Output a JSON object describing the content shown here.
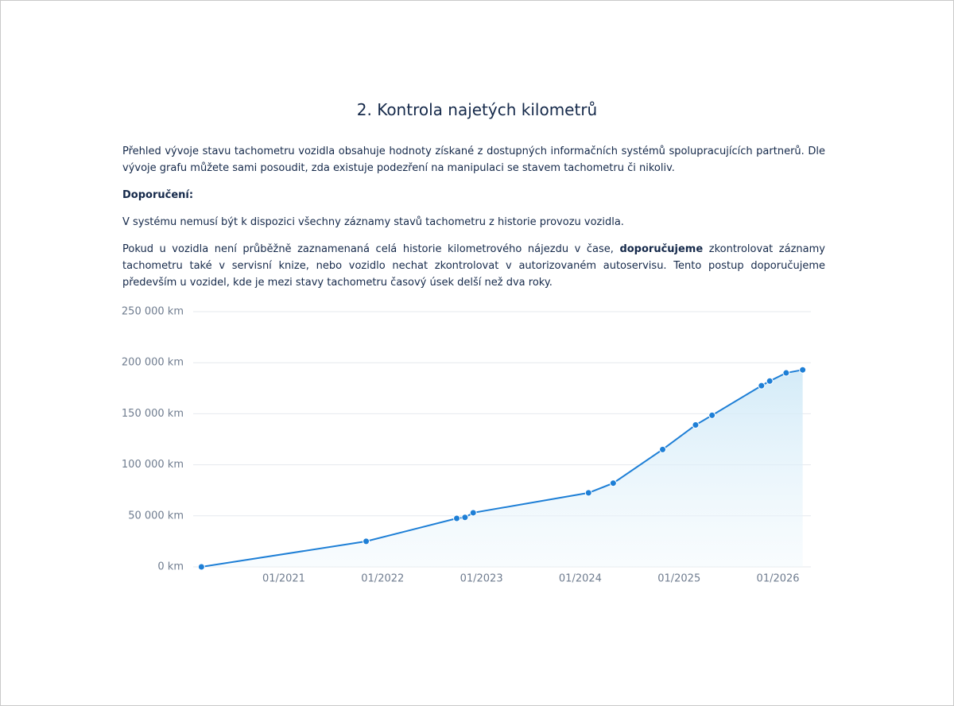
{
  "header": {
    "title": "2. Kontrola najetých kilometrů"
  },
  "paragraphs": [
    [
      "Přehled vývoje stavu tachometru vozidla obsahuje hodnoty získané z dostupných informačních systémů spolupracujících partnerů. Dle vývoje grafu můžete sami posoudit, zda existuje podezření na manipulaci se stavem tachometru či nikoliv."
    ],
    [
      "Doporučení:"
    ],
    [
      "V systému nemusí být k dispozici všechny záznamy stavů tachometru z historie provozu vozidla."
    ],
    [
      "Pokud u vozidla není průběžně zaznamenaná celá historie kilometrového nájezdu v čase, ",
      "doporučujeme",
      " zkontrolovat záznamy tachometru také v servisní knize, nebo vozidlo nechat zkontrolovat v autorizovaném autoservisu. Tento postup doporučujeme především u vozidel, kde je mezi stavy tachometru časový úsek delší než dva roky."
    ]
  ],
  "chart_data": {
    "type": "area-line",
    "x": [
      "2020-03",
      "2021-11",
      "2022-10",
      "2022-11",
      "2022-12",
      "2024-02",
      "2024-05",
      "2024-11",
      "2025-03",
      "2025-05",
      "2025-11",
      "2025-12",
      "2026-02",
      "2026-04"
    ],
    "series": [
      {
        "color": "#1e7fd6",
        "values": [
          0,
          25000,
          47500,
          48500,
          53000,
          72500,
          82000,
          115000,
          139000,
          148500,
          177500,
          182000,
          190000,
          193000
        ]
      }
    ],
    "xlim": [
      "2020-02",
      "2026-05"
    ],
    "xticks": [
      {
        "value": "2021-01",
        "label": "01/2021"
      },
      {
        "value": "2022-01",
        "label": "01/2022"
      },
      {
        "value": "2023-01",
        "label": "01/2023"
      },
      {
        "value": "2024-01",
        "label": "01/2024"
      },
      {
        "value": "2025-01",
        "label": "01/2025"
      },
      {
        "value": "2026-01",
        "label": "01/2026"
      }
    ],
    "ylim": [
      0,
      250000
    ],
    "yticks": [
      {
        "value": 0,
        "label": "0 km"
      },
      {
        "value": 50000,
        "label": "50 000 km"
      },
      {
        "value": 100000,
        "label": "100 000 km"
      },
      {
        "value": 150000,
        "label": "150 000 km"
      },
      {
        "value": 200000,
        "label": "200 000 km"
      },
      {
        "value": 250000,
        "label": "250 000 km"
      }
    ],
    "grid": true
  }
}
